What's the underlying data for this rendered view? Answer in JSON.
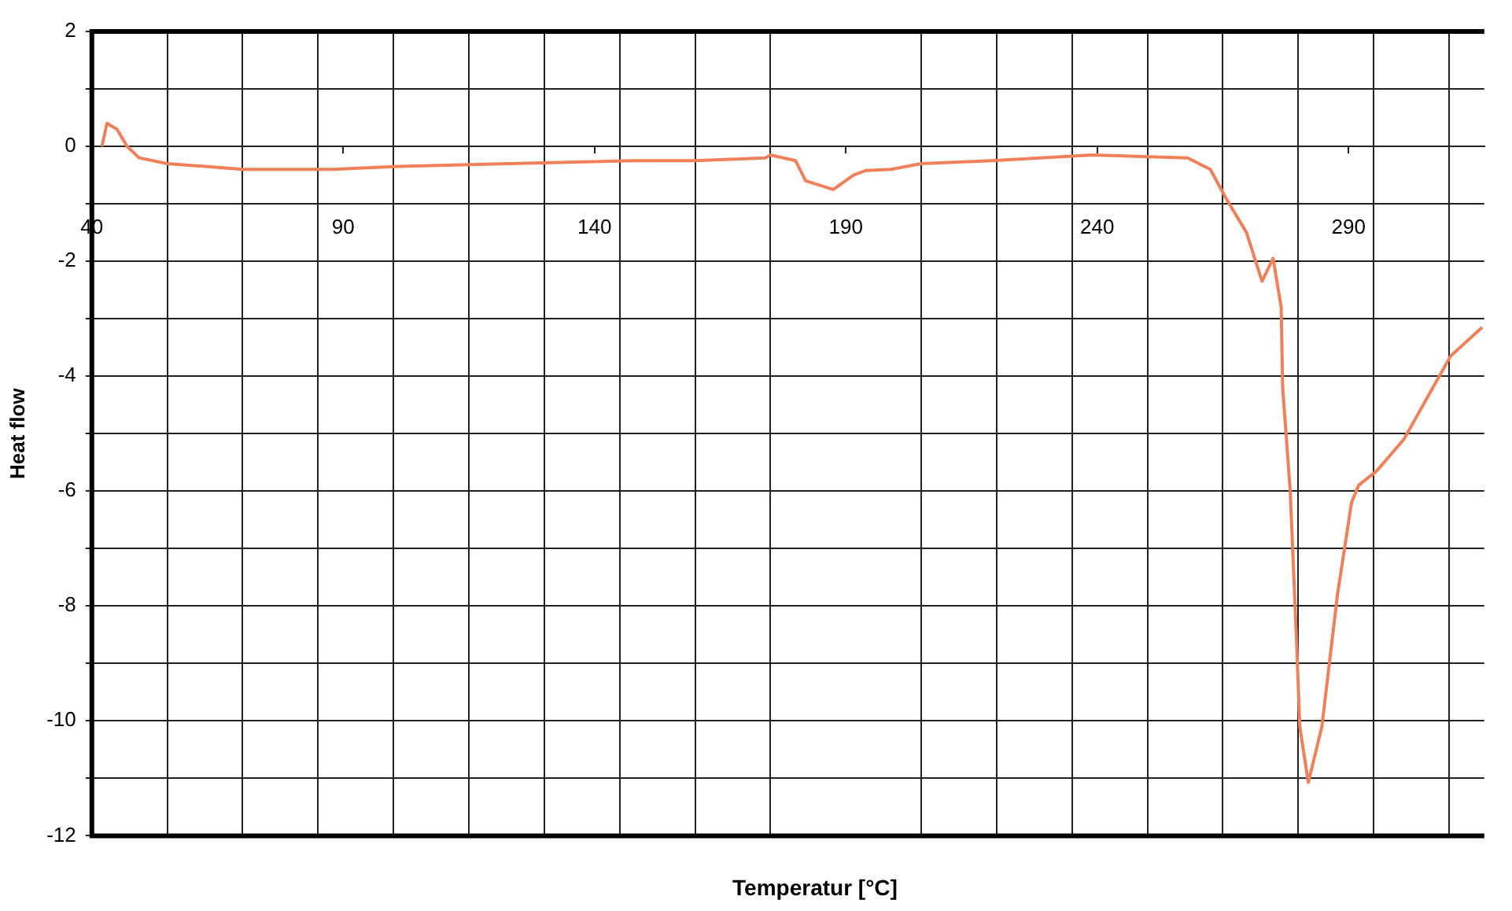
{
  "chart_data": {
    "type": "line",
    "xlabel": "Temperatur [°C]",
    "ylabel": "Heat flow",
    "x": [
      42,
      43,
      45,
      47,
      49.4,
      55,
      70,
      88,
      101,
      123,
      148,
      160,
      174,
      175,
      180,
      182,
      187.5,
      191.5,
      194,
      199,
      205,
      219,
      239,
      258,
      262.5,
      265.6,
      269.7,
      272.8,
      275,
      276.6,
      276.9,
      278.4,
      279.7,
      280.3,
      282,
      284.7,
      287.8,
      290.6,
      292,
      295.6,
      301,
      310.3,
      316.6
    ],
    "series": [
      {
        "color": "#f0805a",
        "values": [
          0,
          0.4,
          0.3,
          0,
          -0.2,
          -0.3,
          -0.4,
          -0.4,
          -0.35,
          -0.3,
          -0.25,
          -0.25,
          -0.2,
          -0.15,
          -0.25,
          -0.6,
          -0.75,
          -0.5,
          -0.42,
          -0.4,
          -0.3,
          -0.25,
          -0.15,
          -0.2,
          -0.4,
          -0.9,
          -1.5,
          -2.35,
          -1.95,
          -2.8,
          -4.2,
          -6,
          -8.7,
          -10.1,
          -11.07,
          -10.1,
          -7.8,
          -6.2,
          -5.9,
          -5.65,
          -5.1,
          -3.65,
          -3.15
        ]
      }
    ],
    "xlim": [
      40,
      317
    ],
    "xticks": [
      40,
      {
        "value": 55,
        "label": null
      },
      {
        "value": 70,
        "label": null
      },
      {
        "value": 85,
        "label": null
      },
      90,
      {
        "value": 100,
        "label": null
      },
      {
        "value": 115,
        "label": null
      },
      {
        "value": 130,
        "label": null
      },
      140,
      {
        "value": 145,
        "label": null
      },
      {
        "value": 160,
        "label": null
      },
      {
        "value": 175,
        "label": null
      },
      190,
      {
        "value": 205,
        "label": null
      },
      {
        "value": 220,
        "label": null
      },
      {
        "value": 235,
        "label": null
      },
      240,
      {
        "value": 250,
        "label": null
      },
      {
        "value": 265,
        "label": null
      },
      {
        "value": 280,
        "label": null
      },
      290,
      {
        "value": 295,
        "label": null
      },
      {
        "value": 310,
        "label": null
      }
    ],
    "ylim": [
      -12,
      2
    ],
    "yticks": [
      -12,
      {
        "value": -11,
        "label": null
      },
      -10,
      {
        "value": -9,
        "label": null
      },
      -8,
      {
        "value": -7,
        "label": null
      },
      -6,
      {
        "value": -5,
        "label": null
      },
      -4,
      {
        "value": -3,
        "label": null
      },
      -2,
      {
        "value": -1,
        "label": null
      },
      0,
      {
        "value": 1,
        "label": null
      },
      2
    ],
    "grid": true,
    "legend": false,
    "marker": "none",
    "line_style": "solid"
  }
}
